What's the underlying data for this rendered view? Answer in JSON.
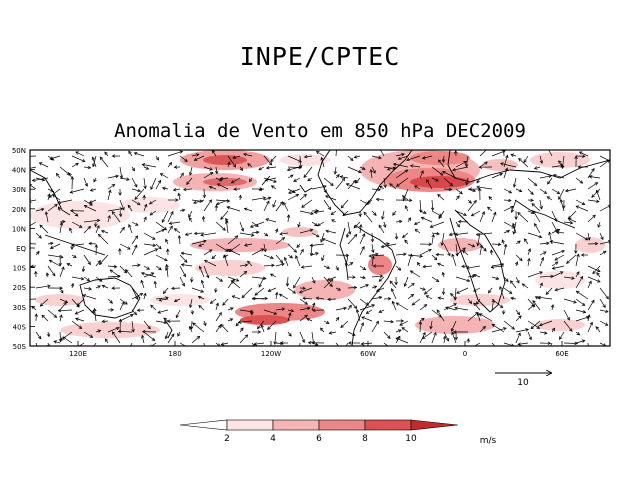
{
  "header": {
    "main_title": "INPE/CPTEC",
    "sub_title": "Anomalia de Vento em 850 hPa DEC2009"
  },
  "map": {
    "lat_labels": [
      "50N",
      "40N",
      "30N",
      "20N",
      "10N",
      "EQ",
      "10S",
      "20S",
      "30S",
      "40S",
      "50S"
    ],
    "lon_labels": [
      "120E",
      "180",
      "120W",
      "60W",
      "0",
      "60E"
    ]
  },
  "reference_vector": {
    "label": "10",
    "magnitude": 10
  },
  "colorbar": {
    "labels": [
      "2",
      "4",
      "6",
      "8",
      "10"
    ],
    "unit": "m/s",
    "colors": [
      "#ffffff",
      "#fde4e4",
      "#f7b4b4",
      "#ee8686",
      "#dc5252",
      "#c42a2a"
    ]
  },
  "colors": {
    "frame": "#000000",
    "coast": "#000000"
  }
}
